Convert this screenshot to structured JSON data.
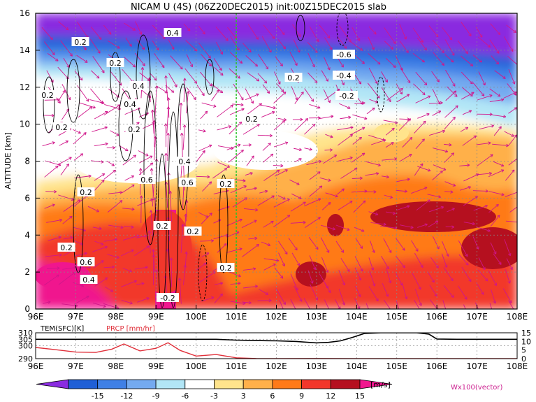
{
  "chart_data": [
    {
      "type": "heatmap",
      "title": "NICAM U (4S) (06Z20DEC2015) init:00Z15DEC2015 slab",
      "xlabel": "",
      "ylabel": "ALTITUDE [km]",
      "x_ticks": [
        "96E",
        "97E",
        "98E",
        "99E",
        "100E",
        "101E",
        "102E",
        "103E",
        "104E",
        "105E",
        "106E",
        "107E",
        "108E"
      ],
      "x_range": [
        96,
        108
      ],
      "y_ticks": [
        "0",
        "2",
        "4",
        "6",
        "8",
        "10",
        "12",
        "14",
        "16"
      ],
      "y_range": [
        0,
        16
      ],
      "grid": true,
      "colorbar": {
        "unit": "[m/s]",
        "tick_labels": [
          "-15",
          "-12",
          "-9",
          "-6",
          "-3",
          "3",
          "6",
          "9",
          "12",
          "15"
        ],
        "colors": [
          "#8a2ce0",
          "#1f5fd6",
          "#3f80e6",
          "#74aaf0",
          "#b2e6f6",
          "#ffffff",
          "#ffe48c",
          "#ffb04a",
          "#ff7a18",
          "#f2372b",
          "#b5101f",
          "#f0168e"
        ]
      },
      "contour_labels": [
        "0.2",
        "0.2",
        "0.2",
        "0.2",
        "0.4",
        "0.4",
        "0.4",
        "0.4",
        "0.6",
        "0.6",
        "0.2",
        "0.2",
        "0.2",
        "0.2",
        "0.2",
        "0.6",
        "0.4",
        "-0.2",
        "-0.6",
        "-0.4",
        "-0.2",
        "0.2",
        "0.2",
        "0.2",
        "0.2"
      ],
      "vector_label": "Wx100(vector)",
      "marker_line_x": 101
    },
    {
      "type": "line",
      "x_range": [
        96,
        108
      ],
      "legend": [
        "TEM(SFC)[K]",
        "PRCP [mm/hr]"
      ],
      "left_axis": {
        "ticks": [
          "290",
          "300",
          "305",
          "310"
        ],
        "range": [
          290,
          310
        ]
      },
      "right_axis": {
        "ticks": [
          "0",
          "5",
          "10",
          "15"
        ],
        "range": [
          0,
          15
        ]
      },
      "series": [
        {
          "name": "TEM(SFC)[K]",
          "color": "#000000",
          "x": [
            96,
            97,
            98,
            99,
            100,
            100.5,
            101,
            101.5,
            102,
            102.5,
            102.8,
            103,
            103.3,
            103.6,
            103.9,
            104.2,
            104.6,
            105,
            105.5,
            105.8,
            106,
            106.5,
            107,
            107.5,
            108
          ],
          "y": [
            305,
            305,
            305,
            305,
            305,
            305,
            304.3,
            304,
            303.8,
            303.3,
            302.6,
            302.2,
            302.6,
            303.8,
            306.5,
            309.5,
            310,
            310,
            310,
            309,
            305.2,
            305,
            305,
            305,
            305
          ]
        },
        {
          "name": "PRCP [mm/hr]",
          "color": "#e0303a",
          "x": [
            96,
            96.5,
            97,
            97.5,
            97.9,
            98.2,
            98.6,
            99,
            99.3,
            99.6,
            100,
            100.5,
            101,
            101.5,
            102,
            103,
            104,
            105,
            106,
            107,
            108
          ],
          "y": [
            6.5,
            5.2,
            3.8,
            3.6,
            5.5,
            8.5,
            4.5,
            6,
            9.2,
            4.8,
            1.5,
            2.4,
            0.5,
            0.1,
            0,
            0.1,
            0,
            0,
            0,
            0,
            0
          ]
        }
      ]
    }
  ]
}
